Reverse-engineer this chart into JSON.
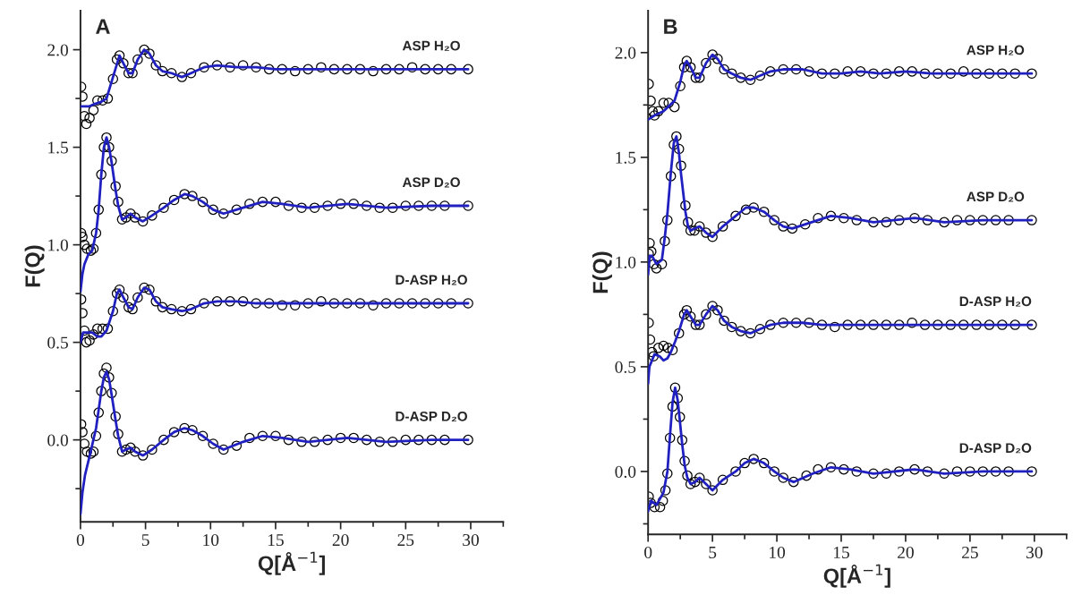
{
  "chart_data": [
    {
      "type": "scatter",
      "title": "A",
      "xlabel": "Q[Å$^{−1}$]",
      "ylabel": "F(Q)",
      "grid": false,
      "legend": false,
      "xlim": [
        0,
        32.5
      ],
      "ylim": [
        -0.42,
        2.2
      ],
      "xticks": [
        0,
        {
          "value": 2.5,
          "label": null
        },
        5,
        {
          "value": 7.5,
          "label": null
        },
        10,
        {
          "value": 12.5,
          "label": null
        },
        15,
        {
          "value": 17.5,
          "label": null
        },
        20,
        {
          "value": 22.5,
          "label": null
        },
        25,
        {
          "value": 27.5,
          "label": null
        },
        30,
        {
          "value": 32.5,
          "label": null
        }
      ],
      "yticks": [
        {
          "value": -0.25,
          "label": null
        },
        {
          "value": 0,
          "label": "0.0"
        },
        {
          "value": 0.25,
          "label": null
        },
        {
          "value": 0.5,
          "label": "0.5"
        },
        {
          "value": 0.75,
          "label": null
        },
        {
          "value": 1.0,
          "label": "1.0"
        },
        {
          "value": 1.25,
          "label": null
        },
        {
          "value": 1.5,
          "label": "1.5"
        },
        {
          "value": 1.75,
          "label": null
        },
        {
          "value": 2.0,
          "label": "2.0"
        }
      ],
      "series": [
        {
          "name": "ASP H₂O",
          "type": "scatter",
          "marker": "circle",
          "color": "#000000",
          "x": [
            0.05,
            0.15,
            0.3,
            0.45,
            0.7,
            1.0,
            1.3,
            1.7,
            2.1,
            2.5,
            2.8,
            3.0,
            3.3,
            3.7,
            4.0,
            4.4,
            4.9,
            5.3,
            5.8,
            6.3,
            7.0,
            7.8,
            8.5,
            9.5,
            10.5,
            11.5,
            12.5,
            13.5,
            14.5,
            15.5,
            16.5,
            17.5,
            18.5,
            19.5,
            20.5,
            21.5,
            22.5,
            23.5,
            24.5,
            25.5,
            26.5,
            27.5,
            28.5,
            29.8
          ],
          "values": [
            1.81,
            1.76,
            1.66,
            1.62,
            1.65,
            1.69,
            1.74,
            1.74,
            1.75,
            1.85,
            1.95,
            1.97,
            1.93,
            1.88,
            1.88,
            1.95,
            2.0,
            1.98,
            1.92,
            1.89,
            1.88,
            1.86,
            1.88,
            1.91,
            1.92,
            1.91,
            1.92,
            1.91,
            1.9,
            1.9,
            1.89,
            1.9,
            1.91,
            1.9,
            1.9,
            1.9,
            1.89,
            1.9,
            1.9,
            1.91,
            1.9,
            1.9,
            1.9,
            1.9
          ]
        },
        {
          "name": "ASP D₂O",
          "type": "scatter",
          "marker": "circle",
          "color": "#000000",
          "x": [
            0.05,
            0.15,
            0.3,
            0.5,
            0.8,
            1.0,
            1.2,
            1.4,
            1.6,
            1.8,
            2.0,
            2.2,
            2.4,
            2.7,
            2.9,
            3.2,
            3.5,
            3.85,
            4.2,
            4.8,
            5.5,
            6.4,
            7.2,
            8.0,
            8.6,
            9.4,
            10.2,
            11.0,
            12.0,
            13.0,
            14.0,
            15.0,
            16.0,
            17.0,
            18.0,
            19.0,
            20.0,
            21.0,
            22.0,
            23.0,
            24.0,
            25.0,
            26.0,
            27.0,
            28.0,
            29.8
          ],
          "values": [
            1.06,
            1.04,
            1.0,
            0.98,
            0.97,
            0.98,
            1.06,
            1.18,
            1.36,
            1.5,
            1.55,
            1.5,
            1.43,
            1.3,
            1.22,
            1.13,
            1.14,
            1.16,
            1.14,
            1.12,
            1.15,
            1.19,
            1.23,
            1.26,
            1.25,
            1.22,
            1.18,
            1.16,
            1.18,
            1.21,
            1.22,
            1.22,
            1.2,
            1.19,
            1.19,
            1.2,
            1.21,
            1.21,
            1.2,
            1.19,
            1.19,
            1.2,
            1.2,
            1.2,
            1.2,
            1.2
          ]
        },
        {
          "name": "D-ASP H₂O",
          "type": "scatter",
          "marker": "circle",
          "color": "#000000",
          "x": [
            0.05,
            0.15,
            0.3,
            0.45,
            0.7,
            1.0,
            1.3,
            1.7,
            2.1,
            2.5,
            2.8,
            3.0,
            3.3,
            3.7,
            4.0,
            4.4,
            4.9,
            5.3,
            5.8,
            6.3,
            7.0,
            7.8,
            8.5,
            9.5,
            10.5,
            11.5,
            12.5,
            13.5,
            14.5,
            15.5,
            16.5,
            17.5,
            18.5,
            19.5,
            20.5,
            21.5,
            22.5,
            23.5,
            24.5,
            25.5,
            26.5,
            27.5,
            28.5,
            29.8
          ],
          "values": [
            0.72,
            0.65,
            0.56,
            0.5,
            0.51,
            0.54,
            0.57,
            0.57,
            0.57,
            0.66,
            0.75,
            0.77,
            0.73,
            0.68,
            0.67,
            0.73,
            0.78,
            0.77,
            0.71,
            0.68,
            0.67,
            0.66,
            0.67,
            0.7,
            0.71,
            0.71,
            0.71,
            0.7,
            0.7,
            0.69,
            0.69,
            0.7,
            0.71,
            0.7,
            0.7,
            0.7,
            0.69,
            0.7,
            0.7,
            0.7,
            0.7,
            0.7,
            0.7,
            0.7
          ]
        },
        {
          "name": "D-ASP D₂O",
          "type": "scatter",
          "marker": "circle",
          "color": "#000000",
          "x": [
            0.05,
            0.15,
            0.3,
            0.5,
            0.8,
            1.0,
            1.2,
            1.4,
            1.6,
            1.8,
            2.0,
            2.2,
            2.4,
            2.7,
            2.9,
            3.2,
            3.5,
            3.85,
            4.2,
            4.8,
            5.5,
            6.4,
            7.2,
            8.0,
            8.6,
            9.4,
            10.2,
            11.0,
            12.0,
            13.0,
            14.0,
            15.0,
            16.0,
            17.0,
            18.0,
            19.0,
            20.0,
            21.0,
            22.0,
            23.0,
            24.0,
            25.0,
            26.0,
            27.0,
            28.0,
            29.8
          ],
          "values": [
            0.08,
            0.04,
            -0.02,
            -0.06,
            -0.07,
            -0.06,
            0.02,
            0.14,
            0.25,
            0.34,
            0.37,
            0.32,
            0.24,
            0.12,
            0.03,
            -0.06,
            -0.05,
            -0.04,
            -0.06,
            -0.08,
            -0.05,
            0.0,
            0.04,
            0.06,
            0.05,
            0.02,
            -0.02,
            -0.05,
            -0.03,
            0.01,
            0.02,
            0.02,
            0.0,
            -0.01,
            -0.01,
            0.0,
            0.01,
            0.01,
            0.0,
            -0.01,
            -0.01,
            0.0,
            0.0,
            0.0,
            0.0,
            0.0
          ]
        },
        {
          "type": "line",
          "color": "#2020c0",
          "x": [
            0,
            0.3,
            0.7,
            1.0,
            1.5,
            2.0,
            2.5,
            3.0,
            3.3,
            3.7,
            4.0,
            4.4,
            4.9,
            5.3,
            5.8,
            6.3,
            7.0,
            7.8,
            8.5,
            9.5,
            10.5,
            12,
            13.5,
            15,
            17,
            19,
            21,
            23,
            25,
            27,
            29.8
          ],
          "values": [
            1.71,
            1.71,
            1.71,
            1.72,
            1.73,
            1.75,
            1.86,
            1.97,
            1.93,
            1.88,
            1.88,
            1.95,
            2.0,
            1.98,
            1.92,
            1.89,
            1.88,
            1.86,
            1.88,
            1.91,
            1.92,
            1.91,
            1.91,
            1.9,
            1.9,
            1.9,
            1.9,
            1.9,
            1.9,
            1.9,
            1.9
          ]
        },
        {
          "type": "line",
          "color": "#2020c0",
          "x": [
            0,
            0.15,
            0.3,
            0.6,
            0.9,
            1.2,
            1.4,
            1.6,
            1.8,
            2.0,
            2.2,
            2.4,
            2.7,
            2.9,
            3.2,
            3.5,
            3.85,
            4.2,
            4.8,
            5.5,
            6.4,
            7.2,
            8.0,
            8.6,
            9.4,
            10.2,
            11.0,
            12.5,
            14.0,
            15.5,
            17.5,
            20.5,
            23.5,
            27,
            29.8
          ],
          "values": [
            0.76,
            0.85,
            0.9,
            0.95,
            0.97,
            1.06,
            1.18,
            1.36,
            1.5,
            1.55,
            1.5,
            1.42,
            1.28,
            1.2,
            1.13,
            1.14,
            1.16,
            1.14,
            1.12,
            1.15,
            1.19,
            1.23,
            1.26,
            1.25,
            1.22,
            1.18,
            1.16,
            1.19,
            1.22,
            1.21,
            1.19,
            1.21,
            1.19,
            1.2,
            1.2
          ]
        },
        {
          "type": "line",
          "color": "#2020c0",
          "x": [
            0,
            0.2,
            0.5,
            0.9,
            1.3,
            1.6,
            2.0,
            2.5,
            2.8,
            3.0,
            3.3,
            3.7,
            4.0,
            4.4,
            4.9,
            5.3,
            5.8,
            6.3,
            7.0,
            7.8,
            8.5,
            9.5,
            10.5,
            12,
            13.5,
            15,
            17,
            19,
            21,
            23,
            25,
            27,
            29.8
          ],
          "values": [
            0.5,
            0.55,
            0.55,
            0.55,
            0.53,
            0.53,
            0.56,
            0.66,
            0.75,
            0.77,
            0.73,
            0.68,
            0.67,
            0.73,
            0.78,
            0.77,
            0.71,
            0.68,
            0.67,
            0.66,
            0.67,
            0.7,
            0.71,
            0.71,
            0.7,
            0.7,
            0.7,
            0.7,
            0.7,
            0.7,
            0.7,
            0.7,
            0.7
          ]
        },
        {
          "type": "line",
          "color": "#2020c0",
          "x": [
            0,
            0.15,
            0.35,
            0.75,
            1.2,
            1.6,
            1.8,
            2.0,
            2.2,
            2.4,
            2.7,
            2.9,
            3.2,
            3.5,
            3.85,
            4.2,
            4.8,
            5.5,
            6.4,
            7.2,
            8.0,
            8.6,
            9.4,
            10.2,
            11.0,
            12.5,
            14.0,
            15.5,
            17.5,
            20.5,
            23.5,
            27,
            29.8
          ],
          "values": [
            -0.38,
            -0.27,
            -0.18,
            -0.07,
            0.06,
            0.25,
            0.32,
            0.35,
            0.31,
            0.23,
            0.1,
            0.02,
            -0.06,
            -0.05,
            -0.04,
            -0.06,
            -0.08,
            -0.05,
            0.0,
            0.04,
            0.06,
            0.05,
            0.02,
            -0.02,
            -0.05,
            -0.01,
            0.02,
            0.01,
            -0.01,
            0.01,
            -0.01,
            0.0,
            0.0
          ]
        }
      ]
    },
    {
      "type": "scatter",
      "title": "B",
      "xlabel": "Q[Å$^{−1}$]",
      "ylabel": "F(Q)",
      "grid": false,
      "legend": false,
      "xlim": [
        0,
        32.5
      ],
      "ylim": [
        -0.3,
        2.2
      ],
      "xticks": [
        0,
        {
          "value": 2.5,
          "label": null
        },
        5,
        {
          "value": 7.5,
          "label": null
        },
        10,
        {
          "value": 12.5,
          "label": null
        },
        15,
        {
          "value": 17.5,
          "label": null
        },
        20,
        {
          "value": 22.5,
          "label": null
        },
        25,
        {
          "value": 27.5,
          "label": null
        },
        30,
        {
          "value": 32.5,
          "label": null
        }
      ],
      "yticks": [
        {
          "value": -0.25,
          "label": null
        },
        {
          "value": 0,
          "label": "0.0"
        },
        {
          "value": 0.25,
          "label": null
        },
        {
          "value": 0.5,
          "label": "0.5"
        },
        {
          "value": 0.75,
          "label": null
        },
        {
          "value": 1.0,
          "label": "1.0"
        },
        {
          "value": 1.25,
          "label": null
        },
        {
          "value": 1.5,
          "label": "1.5"
        },
        {
          "value": 1.75,
          "label": null
        },
        {
          "value": 2.0,
          "label": "2.0"
        }
      ],
      "series": [
        {
          "name": "ASP H₂O",
          "type": "scatter",
          "marker": "circle",
          "color": "#000000",
          "x": [
            0.05,
            0.2,
            0.35,
            0.5,
            0.8,
            1.2,
            1.6,
            2.05,
            2.5,
            2.8,
            3.0,
            3.3,
            3.7,
            4.0,
            4.5,
            5.0,
            5.4,
            5.9,
            6.5,
            7.2,
            7.95,
            8.7,
            9.5,
            10.5,
            11.5,
            12.5,
            13.5,
            14.5,
            15.5,
            16.5,
            17.5,
            18.5,
            19.5,
            20.5,
            21.5,
            22.5,
            23.5,
            24.5,
            25.5,
            26.5,
            27.5,
            28.5,
            29.8
          ],
          "values": [
            1.85,
            1.77,
            1.72,
            1.7,
            1.72,
            1.76,
            1.76,
            1.74,
            1.84,
            1.93,
            1.96,
            1.93,
            1.88,
            1.88,
            1.95,
            1.99,
            1.97,
            1.92,
            1.9,
            1.88,
            1.87,
            1.89,
            1.91,
            1.92,
            1.92,
            1.91,
            1.9,
            1.9,
            1.91,
            1.91,
            1.9,
            1.9,
            1.91,
            1.91,
            1.9,
            1.9,
            1.9,
            1.91,
            1.9,
            1.9,
            1.9,
            1.9,
            1.9
          ]
        },
        {
          "name": "ASP D₂O",
          "type": "scatter",
          "marker": "circle",
          "color": "#000000",
          "x": [
            0.05,
            0.12,
            0.25,
            0.45,
            0.65,
            1.07,
            1.3,
            1.5,
            1.77,
            2.0,
            2.2,
            2.4,
            2.56,
            2.9,
            3.1,
            3.3,
            3.6,
            4.0,
            4.5,
            5.0,
            5.8,
            6.8,
            7.6,
            8.2,
            9.0,
            9.8,
            10.5,
            11.2,
            12.2,
            13.2,
            14.2,
            15.2,
            16.2,
            17.5,
            18.5,
            19.5,
            20.7,
            21.7,
            23.0,
            24.0,
            25.0,
            26.0,
            27.0,
            28.0,
            29.8
          ],
          "values": [
            1.04,
            1.09,
            1.05,
            0.99,
            0.97,
            0.99,
            1.1,
            1.2,
            1.41,
            1.56,
            1.6,
            1.54,
            1.46,
            1.27,
            1.19,
            1.15,
            1.15,
            1.17,
            1.14,
            1.12,
            1.17,
            1.22,
            1.25,
            1.26,
            1.24,
            1.2,
            1.17,
            1.16,
            1.18,
            1.21,
            1.22,
            1.21,
            1.2,
            1.19,
            1.19,
            1.2,
            1.21,
            1.2,
            1.19,
            1.2,
            1.2,
            1.2,
            1.2,
            1.2,
            1.2
          ]
        },
        {
          "name": "D-ASP H₂O",
          "type": "scatter",
          "marker": "circle",
          "color": "#000000",
          "x": [
            0.05,
            0.15,
            0.3,
            0.42,
            0.8,
            1.2,
            1.55,
            1.9,
            2.4,
            2.8,
            3.0,
            3.3,
            3.7,
            4.0,
            4.5,
            5.0,
            5.4,
            5.9,
            6.5,
            7.2,
            7.95,
            8.7,
            9.5,
            10.5,
            11.5,
            12.5,
            13.5,
            14.5,
            15.5,
            16.5,
            17.5,
            18.5,
            19.5,
            20.5,
            21.5,
            22.5,
            23.5,
            24.5,
            25.5,
            26.5,
            27.5,
            28.5,
            29.8
          ],
          "values": [
            0.71,
            0.63,
            0.57,
            0.55,
            0.59,
            0.6,
            0.59,
            0.58,
            0.66,
            0.75,
            0.77,
            0.74,
            0.7,
            0.7,
            0.75,
            0.79,
            0.77,
            0.72,
            0.69,
            0.67,
            0.66,
            0.68,
            0.7,
            0.71,
            0.71,
            0.71,
            0.7,
            0.69,
            0.7,
            0.7,
            0.7,
            0.7,
            0.7,
            0.71,
            0.7,
            0.7,
            0.7,
            0.7,
            0.7,
            0.7,
            0.7,
            0.7,
            0.7
          ]
        },
        {
          "name": "D-ASP D₂O",
          "type": "scatter",
          "marker": "circle",
          "color": "#000000",
          "x": [
            0.05,
            0.2,
            0.5,
            0.93,
            1.15,
            1.35,
            1.5,
            1.7,
            1.9,
            2.1,
            2.3,
            2.47,
            2.65,
            2.84,
            3.05,
            3.3,
            3.65,
            4.0,
            4.5,
            5.0,
            5.8,
            6.8,
            7.5,
            8.2,
            9.0,
            9.8,
            10.5,
            11.3,
            12.3,
            13.2,
            14.2,
            15.2,
            16.2,
            17.5,
            18.5,
            19.5,
            20.7,
            21.7,
            23.0,
            24.0,
            25.0,
            26.0,
            27.0,
            28.0,
            29.8
          ],
          "values": [
            -0.12,
            -0.15,
            -0.17,
            -0.17,
            -0.14,
            -0.09,
            -0.01,
            0.16,
            0.31,
            0.4,
            0.35,
            0.26,
            0.15,
            0.05,
            -0.02,
            -0.06,
            -0.05,
            -0.03,
            -0.06,
            -0.09,
            -0.04,
            0.0,
            0.04,
            0.06,
            0.04,
            0.0,
            -0.03,
            -0.05,
            -0.02,
            0.01,
            0.02,
            0.01,
            0.0,
            -0.01,
            -0.01,
            0.0,
            0.01,
            0.0,
            -0.01,
            0.0,
            0.0,
            0.0,
            0.0,
            0.0,
            0.0
          ]
        },
        {
          "type": "line",
          "color": "#2020c0",
          "x": [
            0,
            0.5,
            1.2,
            2.05,
            2.5,
            2.8,
            3.0,
            3.3,
            3.7,
            4.0,
            4.5,
            5.0,
            5.4,
            5.9,
            6.5,
            7.2,
            7.95,
            8.7,
            9.5,
            10.5,
            12,
            13.5,
            15,
            16.5,
            18,
            20,
            22,
            24,
            26,
            28,
            29.8
          ],
          "values": [
            1.68,
            1.7,
            1.72,
            1.77,
            1.86,
            1.94,
            1.96,
            1.93,
            1.88,
            1.88,
            1.95,
            1.99,
            1.97,
            1.92,
            1.9,
            1.88,
            1.87,
            1.89,
            1.91,
            1.92,
            1.92,
            1.9,
            1.9,
            1.91,
            1.9,
            1.91,
            1.9,
            1.9,
            1.9,
            1.9,
            1.9
          ]
        },
        {
          "type": "line",
          "color": "#2020c0",
          "x": [
            0,
            0.12,
            0.3,
            0.65,
            1.07,
            1.3,
            1.5,
            1.77,
            2.0,
            2.2,
            2.4,
            2.56,
            2.9,
            3.1,
            3.3,
            3.6,
            4.0,
            4.5,
            5.0,
            5.8,
            6.8,
            7.6,
            8.2,
            9.0,
            9.8,
            10.5,
            11.2,
            12.7,
            14.2,
            15.7,
            17.5,
            20.7,
            23.0,
            26,
            29.8
          ],
          "values": [
            0.94,
            1.03,
            1.03,
            0.99,
            1.01,
            1.12,
            1.23,
            1.43,
            1.57,
            1.6,
            1.52,
            1.42,
            1.24,
            1.17,
            1.15,
            1.16,
            1.17,
            1.14,
            1.12,
            1.17,
            1.22,
            1.26,
            1.26,
            1.24,
            1.2,
            1.17,
            1.16,
            1.19,
            1.22,
            1.21,
            1.19,
            1.21,
            1.19,
            1.2,
            1.2
          ]
        },
        {
          "type": "line",
          "color": "#2020c0",
          "x": [
            0,
            0.1,
            0.5,
            0.9,
            1.2,
            1.5,
            1.77,
            2.1,
            2.4,
            2.8,
            3.0,
            3.3,
            3.7,
            4.0,
            4.5,
            5.0,
            5.4,
            5.9,
            6.5,
            7.2,
            7.95,
            8.7,
            9.5,
            10.5,
            12,
            13.5,
            15,
            17,
            19,
            21,
            23,
            25,
            27,
            29.8
          ],
          "values": [
            0.42,
            0.5,
            0.56,
            0.55,
            0.53,
            0.54,
            0.57,
            0.62,
            0.67,
            0.75,
            0.77,
            0.74,
            0.7,
            0.7,
            0.75,
            0.79,
            0.77,
            0.72,
            0.69,
            0.67,
            0.66,
            0.68,
            0.7,
            0.71,
            0.71,
            0.7,
            0.7,
            0.7,
            0.7,
            0.7,
            0.7,
            0.7,
            0.7,
            0.7
          ]
        },
        {
          "type": "line",
          "color": "#2020c0",
          "x": [
            0,
            0.22,
            0.65,
            1.2,
            1.5,
            1.7,
            1.9,
            2.1,
            2.3,
            2.47,
            2.65,
            2.84,
            3.05,
            3.3,
            3.65,
            4.0,
            4.5,
            5.0,
            5.8,
            6.8,
            7.5,
            8.2,
            9.0,
            9.8,
            10.5,
            11.3,
            12.8,
            14.2,
            15.7,
            17.5,
            20.7,
            23.0,
            26,
            29.8
          ],
          "values": [
            -0.19,
            -0.14,
            -0.16,
            -0.1,
            0.0,
            0.17,
            0.33,
            0.4,
            0.34,
            0.24,
            0.13,
            0.03,
            -0.03,
            -0.06,
            -0.05,
            -0.03,
            -0.06,
            -0.09,
            -0.04,
            0.0,
            0.04,
            0.06,
            0.04,
            0.0,
            -0.03,
            -0.05,
            -0.01,
            0.02,
            0.01,
            -0.01,
            0.01,
            -0.01,
            0.0,
            0.0
          ]
        }
      ]
    }
  ]
}
